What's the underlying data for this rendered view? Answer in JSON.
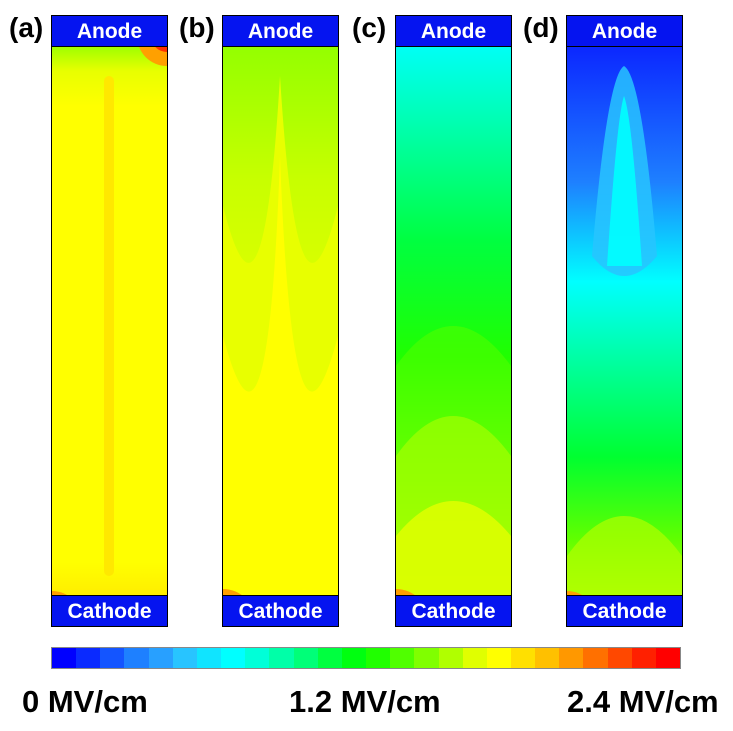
{
  "panels": [
    {
      "label": "(a)",
      "anode": "Anode",
      "cathode": "Cathode",
      "field_level": 0.82
    },
    {
      "label": "(b)",
      "anode": "Anode",
      "cathode": "Cathode",
      "field_level": 0.78
    },
    {
      "label": "(c)",
      "anode": "Anode",
      "cathode": "Cathode",
      "field_level": 0.45
    },
    {
      "label": "(d)",
      "anode": "Anode",
      "cathode": "Cathode",
      "field_level": 0.3
    }
  ],
  "colorbar": {
    "min_label": "0 MV/cm",
    "mid_label": "1.2 MV/cm",
    "max_label": "2.4 MV/cm",
    "colors": [
      "#0000ff",
      "#0a2aff",
      "#1455ff",
      "#1e80ff",
      "#28a0ff",
      "#28c4ff",
      "#10e4ff",
      "#00ffff",
      "#00ffd8",
      "#00ffa8",
      "#00ff78",
      "#00ff40",
      "#00ff10",
      "#20ff00",
      "#50ff00",
      "#80ff00",
      "#b0ff00",
      "#e0ff00",
      "#ffff00",
      "#ffe000",
      "#ffc000",
      "#ff9800",
      "#ff7000",
      "#ff4800",
      "#ff2000",
      "#ff0000"
    ]
  }
}
